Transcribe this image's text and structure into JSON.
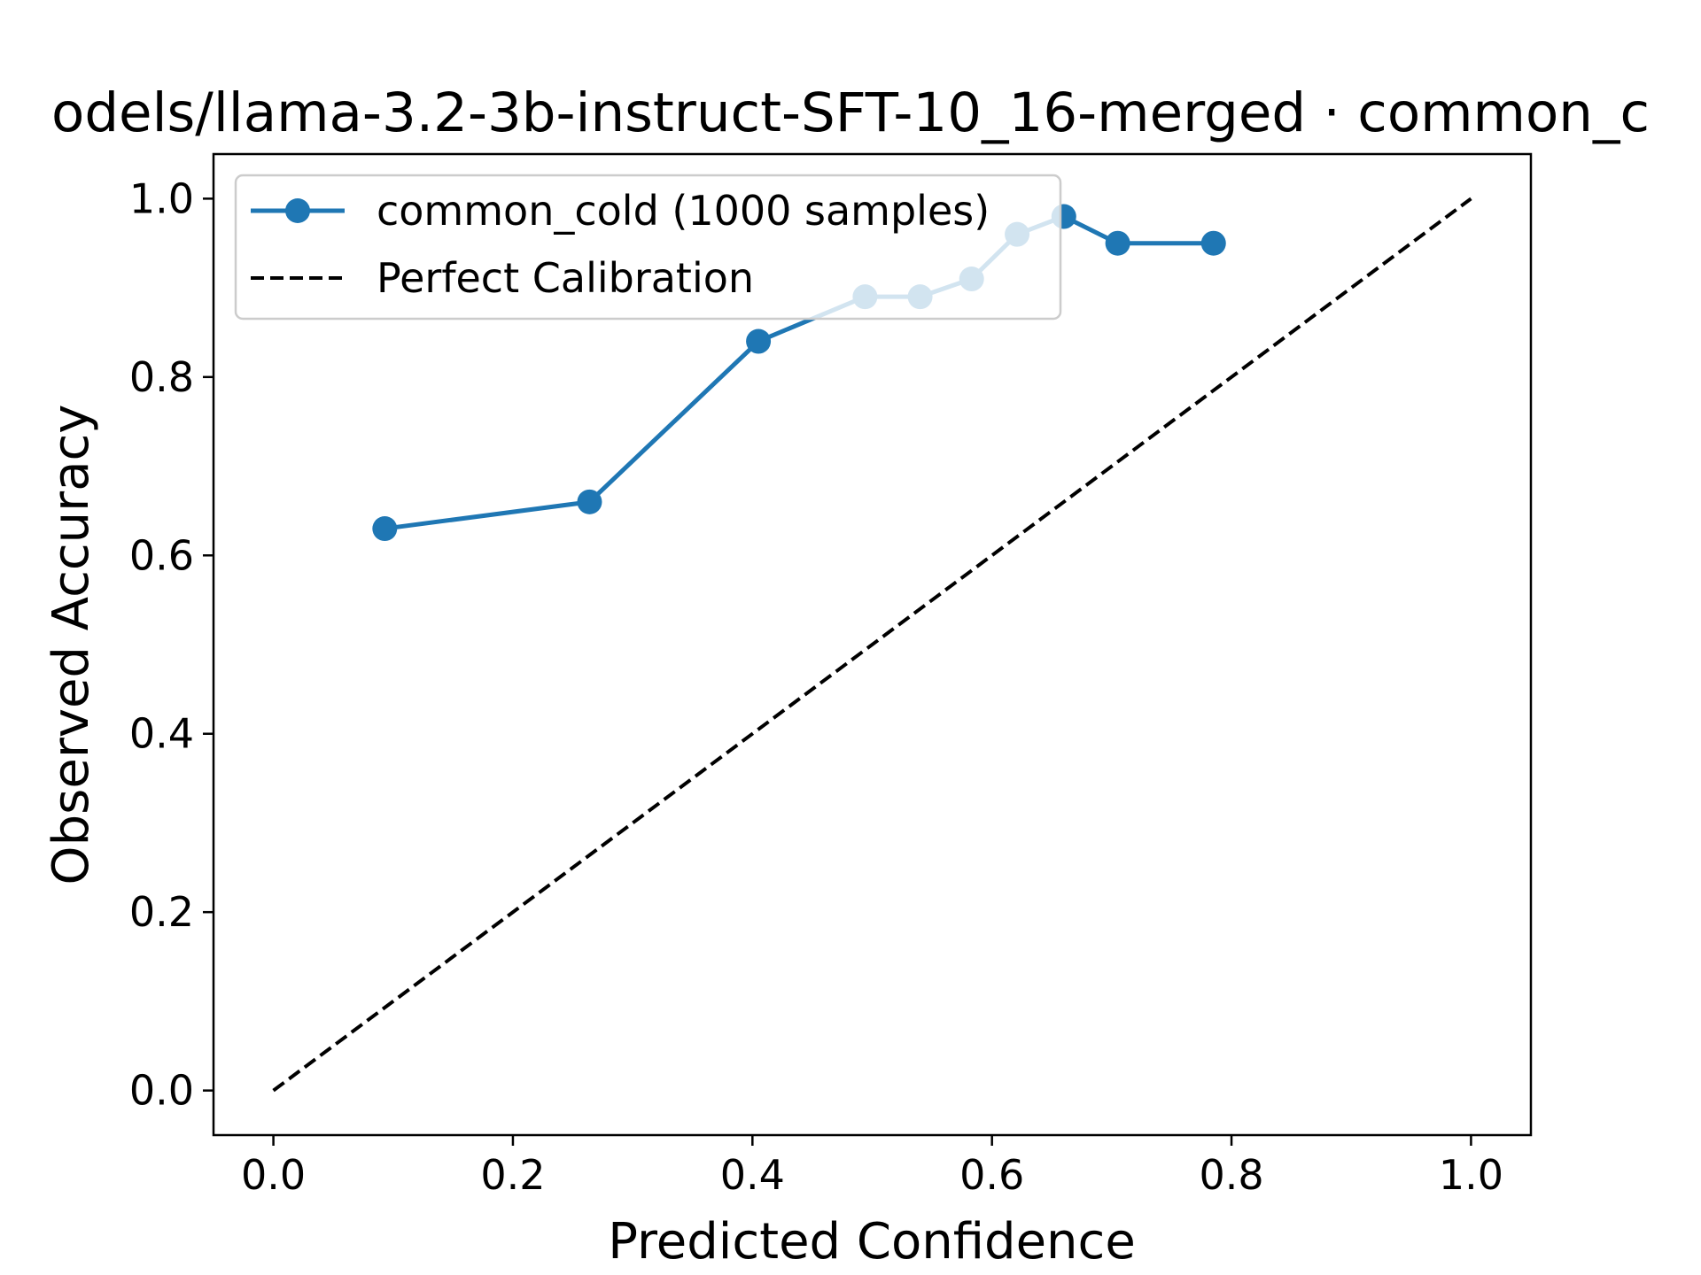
{
  "chart_data": {
    "type": "line",
    "title": "odels/llama-3.2-3b-instruct-SFT-10_16-merged · common_c",
    "xlabel": "Predicted Confidence",
    "ylabel": "Observed Accuracy",
    "xlim": [
      -0.05,
      1.05
    ],
    "ylim": [
      -0.05,
      1.05
    ],
    "x_ticks": [
      0.0,
      0.2,
      0.4,
      0.6,
      0.8,
      1.0
    ],
    "x_tick_labels": [
      "0.0",
      "0.2",
      "0.4",
      "0.6",
      "0.8",
      "1.0"
    ],
    "y_ticks": [
      0.0,
      0.2,
      0.4,
      0.6,
      0.8,
      1.0
    ],
    "y_tick_labels": [
      "0.0",
      "0.2",
      "0.4",
      "0.6",
      "0.8",
      "1.0"
    ],
    "grid": false,
    "legend_position": "top-left",
    "series": [
      {
        "name": "common_cold (1000 samples)",
        "color": "#1f77b4",
        "style": "solid-with-markers",
        "x": [
          0.093,
          0.264,
          0.405,
          0.494,
          0.54,
          0.583,
          0.621,
          0.66,
          0.705,
          0.785
        ],
        "y": [
          0.63,
          0.66,
          0.84,
          0.89,
          0.89,
          0.91,
          0.96,
          0.98,
          0.95,
          0.95
        ]
      },
      {
        "name": "Perfect Calibration",
        "color": "#000000",
        "style": "dashed",
        "x": [
          0.0,
          1.0
        ],
        "y": [
          0.0,
          1.0
        ]
      }
    ]
  }
}
